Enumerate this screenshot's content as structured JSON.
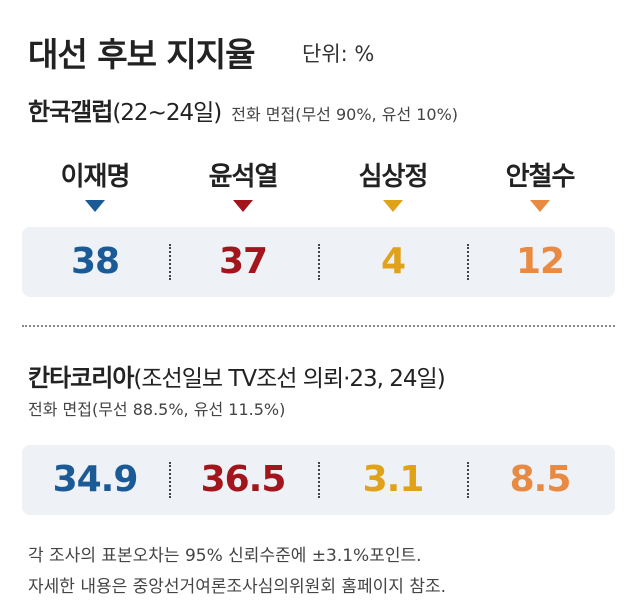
{
  "header": {
    "title": "대선 후보 지지율",
    "unit": "단위: %"
  },
  "candidates": [
    {
      "name": "이재명",
      "color": "#1a5a96"
    },
    {
      "name": "윤석열",
      "color": "#a3151c"
    },
    {
      "name": "심상정",
      "color": "#e0a219"
    },
    {
      "name": "안철수",
      "color": "#e98a42"
    }
  ],
  "polls": [
    {
      "name": "한국갤럽",
      "detail": "(22~24일)",
      "method": "전화 면접(무선 90%, 유선 10%)",
      "values": [
        38,
        37,
        4,
        12
      ]
    },
    {
      "name": "칸타코리아",
      "detail": "(조선일보 TV조선 의뢰·23, 24일)",
      "method": "전화 면접(무선 88.5%, 유선 11.5%)",
      "values": [
        34.9,
        36.5,
        3.1,
        8.5
      ]
    }
  ],
  "footnote": [
    "각 조사의 표본오차는 95% 신뢰수준에 ±3.1%포인트.",
    "자세한 내용은 중앙선거여론조사심의위원회 홈페이지 참조."
  ]
}
